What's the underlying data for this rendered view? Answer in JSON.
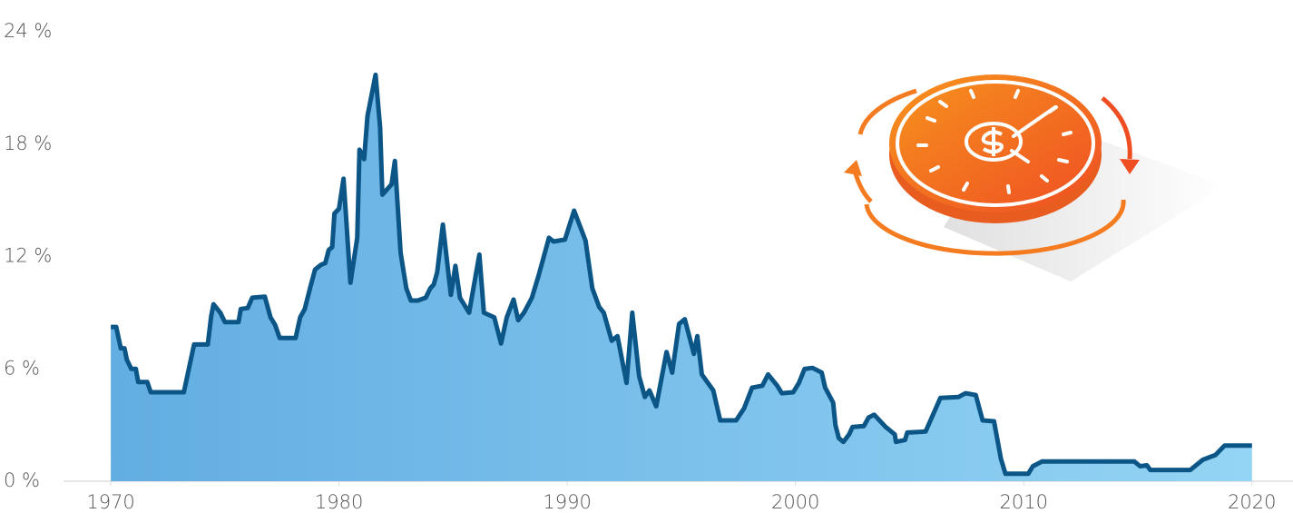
{
  "chart_data": {
    "type": "area",
    "x": [
      1970.0,
      1970.24,
      1970.44,
      1970.6,
      1970.7,
      1970.9,
      1971.1,
      1971.2,
      1971.6,
      1971.75,
      1973.2,
      1973.65,
      1974.25,
      1974.4,
      1974.5,
      1974.8,
      1975.0,
      1975.6,
      1975.7,
      1976.0,
      1976.2,
      1976.75,
      1977.0,
      1977.2,
      1977.4,
      1978.1,
      1978.3,
      1978.5,
      1978.75,
      1978.95,
      1979.2,
      1979.4,
      1979.55,
      1979.7,
      1979.8,
      1980.0,
      1980.2,
      1980.5,
      1980.8,
      1980.9,
      1981.1,
      1981.25,
      1981.6,
      1981.8,
      1981.9,
      1982.3,
      1982.45,
      1982.7,
      1982.95,
      1983.15,
      1983.45,
      1983.8,
      1984.0,
      1984.15,
      1984.3,
      1984.55,
      1984.9,
      1985.1,
      1985.3,
      1985.7,
      1986.15,
      1986.35,
      1986.8,
      1987.1,
      1987.35,
      1987.65,
      1987.85,
      1988.1,
      1988.45,
      1988.75,
      1989.2,
      1989.4,
      1989.9,
      1990.3,
      1990.8,
      1991.1,
      1991.4,
      1991.6,
      1991.95,
      1992.2,
      1992.6,
      1992.85,
      1993.15,
      1993.4,
      1993.6,
      1993.9,
      1994.35,
      1994.6,
      1994.9,
      1995.15,
      1995.55,
      1995.7,
      1995.9,
      1996.4,
      1996.7,
      1997.4,
      1997.75,
      1998.1,
      1998.55,
      1998.8,
      1999.2,
      1999.4,
      1999.9,
      2000.15,
      2000.4,
      2000.75,
      2001.15,
      2001.3,
      2001.65,
      2001.75,
      2001.9,
      2002.1,
      2002.35,
      2002.5,
      2003.0,
      2003.2,
      2003.45,
      2003.95,
      2004.35,
      2004.4,
      2004.8,
      2004.9,
      2005.7,
      2006.35,
      2007.15,
      2007.45,
      2007.9,
      2008.2,
      2008.7,
      2009.0,
      2009.2,
      2010.2,
      2010.4,
      2010.8,
      2014.85,
      2015.1,
      2015.4,
      2015.55,
      2017.3,
      2017.85,
      2018.4,
      2018.8,
      2020.0
    ],
    "values": [
      8.24,
      8.24,
      7.1,
      7.1,
      6.5,
      6.0,
      6.0,
      5.3,
      5.3,
      4.75,
      4.75,
      7.3,
      7.3,
      8.8,
      9.45,
      9.0,
      8.5,
      8.5,
      9.2,
      9.25,
      9.8,
      9.85,
      8.75,
      8.35,
      7.65,
      7.65,
      8.75,
      9.2,
      10.4,
      11.3,
      11.55,
      11.65,
      12.35,
      12.5,
      14.3,
      14.55,
      16.15,
      10.6,
      13.0,
      17.7,
      17.2,
      19.5,
      21.7,
      18.9,
      15.3,
      15.85,
      17.1,
      12.2,
      10.3,
      9.65,
      9.65,
      9.8,
      10.3,
      10.5,
      11.15,
      13.7,
      9.95,
      11.5,
      9.8,
      9.0,
      12.1,
      9.0,
      8.75,
      7.35,
      8.75,
      9.7,
      8.6,
      9.0,
      9.8,
      11.0,
      13.0,
      12.8,
      12.9,
      14.45,
      12.85,
      10.3,
      9.3,
      9.0,
      7.5,
      7.75,
      5.25,
      9.0,
      5.6,
      4.5,
      4.85,
      4.0,
      6.9,
      5.8,
      8.4,
      8.65,
      6.8,
      7.75,
      5.7,
      4.85,
      3.25,
      3.25,
      3.9,
      5.0,
      5.1,
      5.7,
      5.1,
      4.7,
      4.75,
      5.25,
      6.0,
      6.05,
      5.8,
      5.0,
      4.2,
      3.0,
      2.3,
      2.1,
      2.5,
      2.9,
      2.95,
      3.4,
      3.55,
      2.9,
      2.5,
      2.1,
      2.2,
      2.6,
      2.65,
      4.45,
      4.5,
      4.7,
      4.6,
      3.25,
      3.2,
      1.2,
      0.4,
      0.4,
      0.8,
      1.05,
      1.05,
      0.8,
      0.85,
      0.6,
      0.6,
      1.15,
      1.4,
      1.9,
      1.9
    ],
    "line_color": "#0b5686",
    "fill_colors": [
      "#62ade2",
      "#94d4f4"
    ],
    "xlim": [
      1967.93,
      2021.6
    ],
    "xticks": [
      1970,
      1980,
      1990,
      2000,
      2010,
      2020
    ],
    "ylim": [
      0,
      24
    ],
    "yticks": [
      {
        "value": 0,
        "label": "0 %"
      },
      {
        "value": 6,
        "label": "6 %"
      },
      {
        "value": 12,
        "label": "12 %"
      },
      {
        "value": 18,
        "label": "18 %"
      },
      {
        "value": 24,
        "label": "24 %"
      }
    ]
  }
}
